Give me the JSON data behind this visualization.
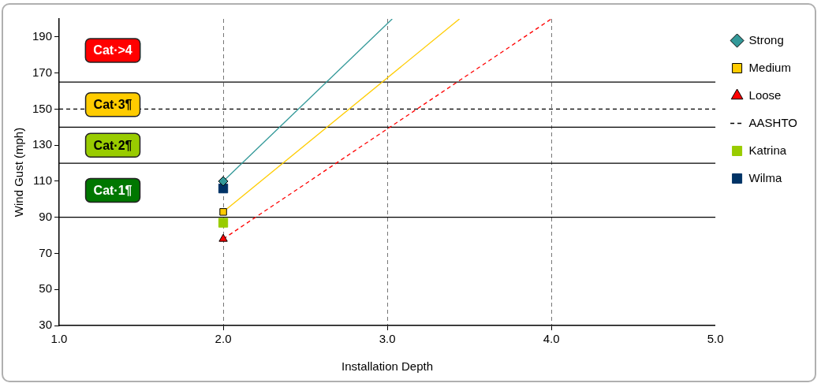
{
  "chart_data": {
    "type": "line",
    "xlabel": "Installation Depth",
    "ylabel": "Wind Gust (mph)",
    "xlim": [
      1,
      5
    ],
    "xticks": [
      {
        "value": 1,
        "label": "1.0"
      },
      {
        "value": 2,
        "label": "2.0"
      },
      {
        "value": 3,
        "label": "3.0"
      },
      {
        "value": 4,
        "label": "4.0"
      },
      {
        "value": 5,
        "label": "5.0"
      }
    ],
    "ylim": [
      30,
      200
    ],
    "yticks": [
      30,
      50,
      70,
      90,
      110,
      130,
      150,
      170,
      190
    ],
    "grid": "x",
    "legend": "top right",
    "series": [
      {
        "name": "Strong",
        "color": "#339999",
        "marker": "diamond",
        "line_style": "solid",
        "x": [
          2,
          3.03
        ],
        "values": [
          110,
          200
        ]
      },
      {
        "name": "Medium",
        "color": "#ffcc00",
        "marker": "square",
        "line_style": "solid",
        "x": [
          2,
          3.44
        ],
        "values": [
          93,
          200
        ]
      },
      {
        "name": "Loose",
        "color": "#ff0000",
        "marker": "triangle",
        "line_style": "dashed",
        "x": [
          2,
          4
        ],
        "values": [
          78,
          200
        ]
      },
      {
        "name": "AASHTO",
        "color": "#000000",
        "marker": "none",
        "line_style": "dashed",
        "x": [
          1,
          5
        ],
        "values": [
          150,
          150
        ]
      },
      {
        "name": "Katrina",
        "type": "scatter",
        "color": "#99cc00",
        "marker": "square",
        "x": [
          2
        ],
        "values": [
          87
        ]
      },
      {
        "name": "Wilma",
        "type": "scatter",
        "color": "#003366",
        "marker": "square",
        "x": [
          2
        ],
        "values": [
          106
        ]
      }
    ],
    "ref_lines": [
      {
        "axis": "y",
        "value": 165,
        "color": "#000000"
      },
      {
        "axis": "y",
        "value": 140,
        "color": "#000000"
      },
      {
        "axis": "y",
        "value": 120,
        "color": "#000000"
      },
      {
        "axis": "y",
        "value": 90,
        "color": "#000000"
      }
    ],
    "annotations": [
      "Cat·>4",
      "Cat·3¶",
      "Cat·2¶",
      "Cat·1¶"
    ]
  }
}
